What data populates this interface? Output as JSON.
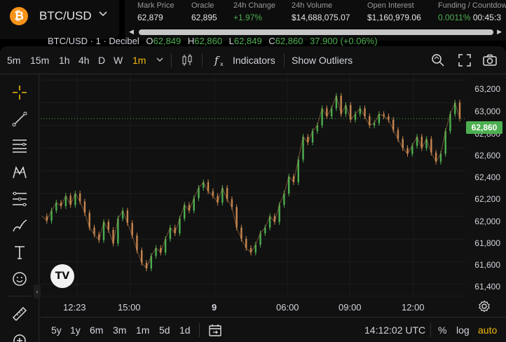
{
  "header": {
    "pair": "BTC/USD",
    "logo_glyph": "₿",
    "stats": [
      {
        "label": "Mark Price",
        "value": "62,879",
        "color": "default"
      },
      {
        "label": "Oracle",
        "value": "62,895",
        "color": "default"
      },
      {
        "label": "24h Change",
        "value": "+1.97%",
        "color": "green"
      },
      {
        "label": "24h Volume",
        "value": "$14,688,075.07",
        "color": "default"
      },
      {
        "label": "Open Interest",
        "value": "$1,160,979.06",
        "color": "default"
      },
      {
        "label": "Funding / Countdown",
        "value": "0.0011%",
        "extra": "00:45:3",
        "color": "green"
      }
    ]
  },
  "toolbar": {
    "timeframes": [
      "5m",
      "15m",
      "1h",
      "4h",
      "D",
      "W",
      "1m"
    ],
    "active_timeframe": "1m",
    "indicators_label": "Indicators",
    "outliers_label": "Show Outliers"
  },
  "legend": {
    "symbol": "BTC/USD · 1 · Decibel",
    "o_label": "O",
    "o_value": "62,849",
    "h_label": "H",
    "h_value": "62,860",
    "l_label": "L",
    "l_value": "62,849",
    "c_label": "C",
    "c_value": "62,860",
    "change": "37.900 (+0.06%)"
  },
  "price_tag": "62,860",
  "bottom": {
    "ranges": [
      "5y",
      "1y",
      "6m",
      "3m",
      "1m",
      "5d",
      "1d"
    ],
    "time": "14:12:02 UTC",
    "percent": "%",
    "log": "log",
    "auto": "auto"
  },
  "colors": {
    "up": "#4caf50",
    "down": "#c7864f",
    "accent": "#f0b90b",
    "brand": "#f7931a"
  },
  "chart_data": {
    "type": "line",
    "title": "BTC/USD · 1 · Decibel",
    "y_ticks": [
      "63,200",
      "63,000",
      "62,800",
      "62,600",
      "62,400",
      "62,200",
      "62,000",
      "61,800",
      "61,600",
      "61,400"
    ],
    "x_ticks": [
      "12:23",
      "15:00",
      "9",
      "06:00",
      "09:00",
      "12:00"
    ],
    "ylim": [
      61300,
      63250
    ],
    "grid": true,
    "series": [
      {
        "values": [
          62000,
          61960,
          62050,
          62120,
          62090,
          62180,
          62100,
          62200,
          62130,
          62030,
          61900,
          61840,
          61790,
          61950,
          61880,
          61760,
          61980,
          62050,
          61940,
          61830,
          61700,
          61590,
          61540,
          61650,
          61720,
          61680,
          61800,
          61900,
          61850,
          61980,
          62100,
          62050,
          62160,
          62250,
          62300,
          62220,
          62180,
          62120,
          62250,
          62150,
          62080,
          61900,
          61800,
          61720,
          61680,
          61750,
          61850,
          61900,
          62000,
          61950,
          62100,
          62200,
          62350,
          62300,
          62500,
          62700,
          62650,
          62750,
          62800,
          62950,
          62880,
          62950,
          63060,
          62900,
          62980,
          62850,
          62900,
          62950,
          62880,
          62800,
          62820,
          62900,
          62880,
          62850,
          62760,
          62680,
          62600,
          62550,
          62620,
          62700,
          62600,
          62680,
          62560,
          62480,
          62550,
          62750,
          62900,
          63000,
          62860
        ]
      }
    ]
  }
}
